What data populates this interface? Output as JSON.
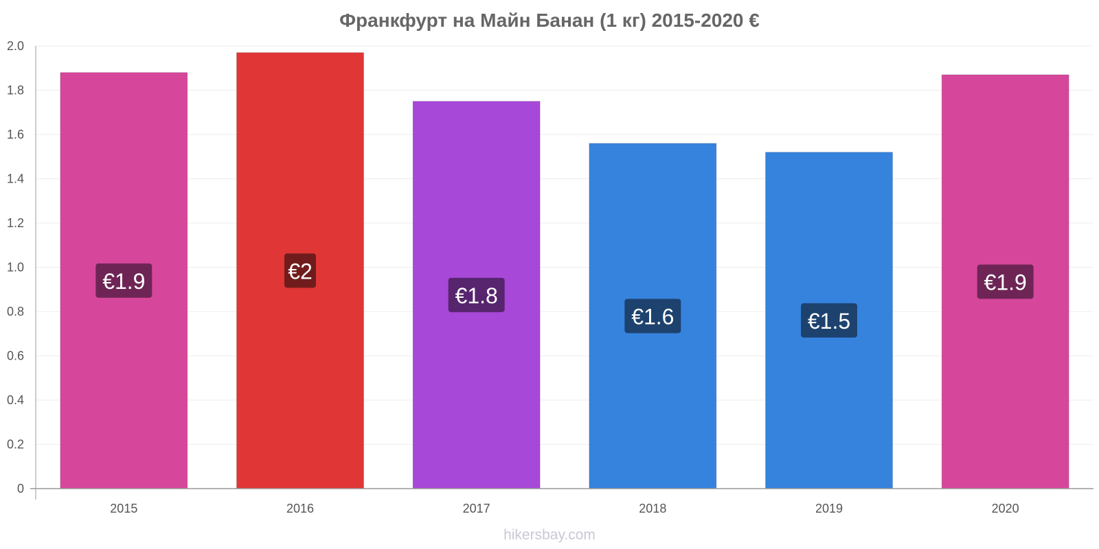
{
  "chart_data": {
    "type": "bar",
    "title": "Франкфурт на Майн Банан (1 кг) 2015-2020 €",
    "categories": [
      "2015",
      "2016",
      "2017",
      "2018",
      "2019",
      "2020"
    ],
    "values": [
      1.88,
      1.97,
      1.75,
      1.56,
      1.52,
      1.87
    ],
    "value_labels": [
      "€1.9",
      "€2",
      "€1.8",
      "€1.6",
      "€1.5",
      "€1.9"
    ],
    "bar_colors": [
      "#d6479b",
      "#e03636",
      "#a748d8",
      "#3683de",
      "#3683de",
      "#d6479b"
    ],
    "label_bg_colors": [
      "#6e2556",
      "#701c1c",
      "#57246e",
      "#1d426e",
      "#1d426e",
      "#6e2556"
    ],
    "ylim": [
      0,
      2.0
    ],
    "yticks": [
      "0",
      "0.2",
      "0.4",
      "0.6",
      "0.8",
      "1.0",
      "1.2",
      "1.4",
      "1.6",
      "1.8",
      "2.0"
    ],
    "grid": true,
    "xlabel": "",
    "ylabel": ""
  },
  "watermark": "hikersbay.com"
}
